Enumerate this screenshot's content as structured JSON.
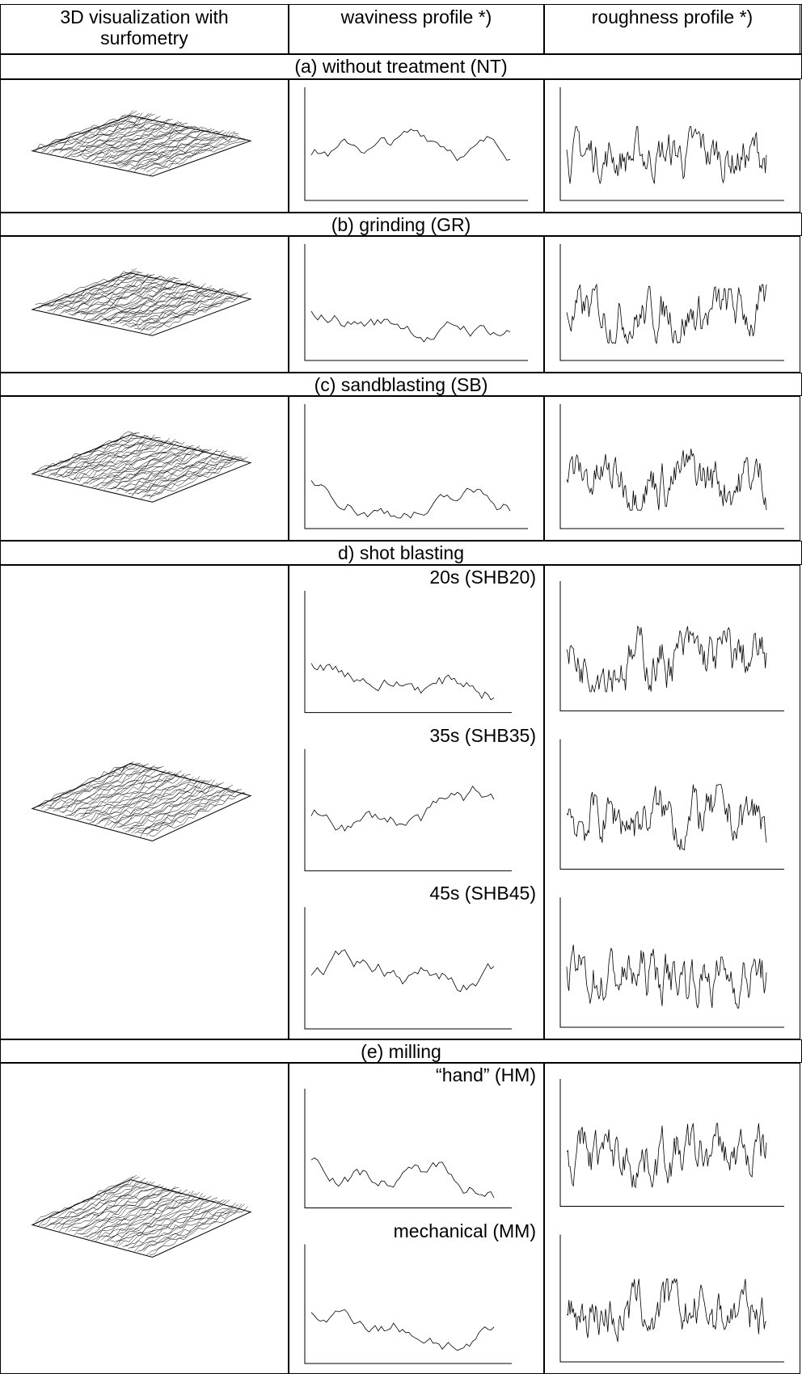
{
  "table": {
    "header": [
      "3D visualization with surfometry",
      "waviness profile *)",
      "roughness profile *)"
    ],
    "sections": [
      {
        "label": "(a) without treatment (NT)"
      },
      {
        "label": "(b) grinding (GR)"
      },
      {
        "label": "(c) sandblasting (SB)"
      },
      {
        "label": "d) shot blasting",
        "sublabels": [
          "20s (SHB20)",
          "35s (SHB35)",
          "45s (SHB45)"
        ]
      },
      {
        "label": "(e) milling",
        "sublabels": [
          "“hand” (HM)",
          "mechanical (MM)"
        ]
      }
    ]
  }
}
